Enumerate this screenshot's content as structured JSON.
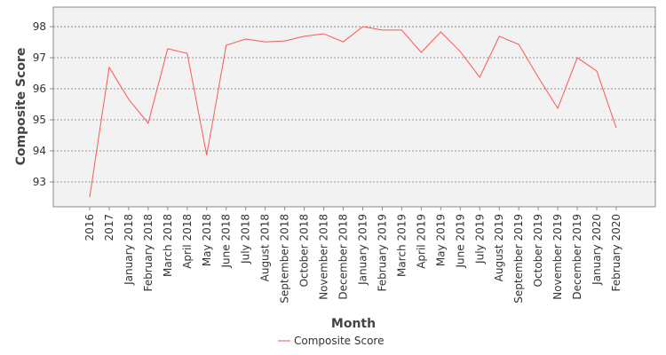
{
  "chart_data": {
    "type": "line",
    "x_label": "Month",
    "y_label": "Composite Score",
    "categories": [
      "2016",
      "2017",
      "January 2018",
      "February 2018",
      "March 2018",
      "April 2018",
      "May 2018",
      "June 2018",
      "July 2018",
      "August 2018",
      "September 2018",
      "October 2018",
      "November 2018",
      "December 2018",
      "January 2019",
      "February 2019",
      "March 2019",
      "April 2019",
      "May 2019",
      "June 2019",
      "July 2019",
      "August 2019",
      "September 2019",
      "October 2019",
      "November 2019",
      "December 2019",
      "January 2020",
      "February 2020"
    ],
    "series": [
      {
        "name": "Composite Score",
        "color": "#ff5555",
        "values": [
          92.51,
          96.69,
          95.66,
          94.89,
          97.29,
          97.14,
          93.86,
          97.4,
          97.6,
          97.51,
          97.54,
          97.69,
          97.77,
          97.51,
          98.0,
          97.89,
          97.89,
          97.17,
          97.83,
          97.2,
          96.37,
          97.69,
          97.43,
          96.37,
          95.37,
          97.0,
          96.57,
          94.74
        ]
      }
    ],
    "ylim": [
      92.2,
      98.63
    ],
    "yticks": [
      93,
      94,
      95,
      96,
      97,
      98
    ],
    "grid": true,
    "legend": "bottom"
  }
}
